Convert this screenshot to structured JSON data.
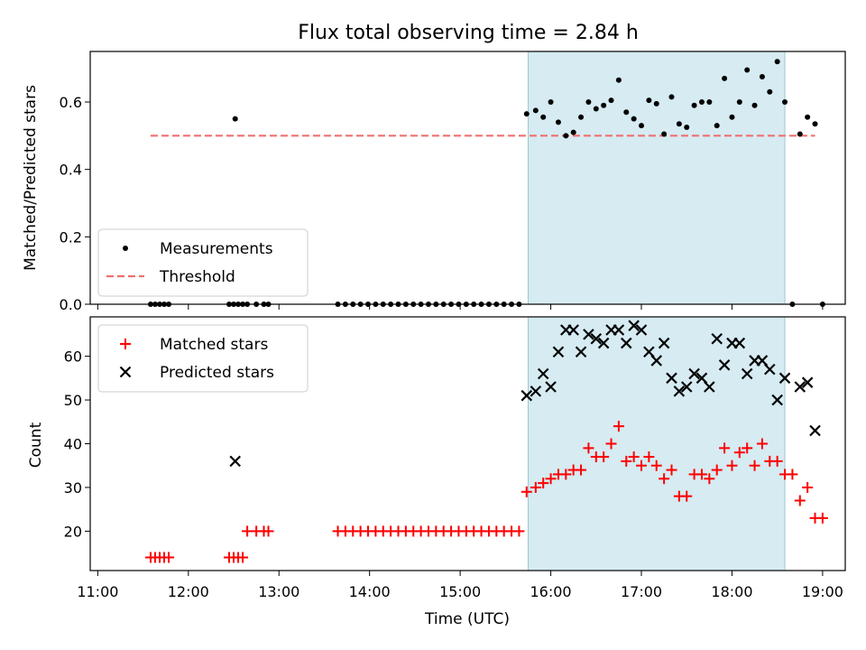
{
  "title": "Flux total observing time = 2.84 h",
  "chart_data": [
    {
      "type": "scatter",
      "panel": "top",
      "ylabel": "Matched/Predicted stars",
      "ylim": [
        0,
        0.75
      ],
      "yticks": [
        0.0,
        0.2,
        0.4,
        0.6
      ],
      "ytick_labels": [
        "0.0",
        "0.2",
        "0.4",
        "0.6"
      ],
      "legend_placement": "lower-left",
      "shaded_interval": [
        "15:45",
        "18:35"
      ],
      "threshold": {
        "name": "Threshold",
        "value": 0.5,
        "x_range": [
          "11:35",
          "18:55"
        ],
        "color": "#f07070"
      },
      "series": [
        {
          "name": "Measurements",
          "color": "#000000",
          "points": [
            [
              "11:35",
              0
            ],
            [
              "11:38",
              0
            ],
            [
              "11:41",
              0
            ],
            [
              "11:44",
              0
            ],
            [
              "11:47",
              0
            ],
            [
              "12:27",
              0
            ],
            [
              "12:30",
              0
            ],
            [
              "12:33",
              0
            ],
            [
              "12:36",
              0
            ],
            [
              "12:39",
              0
            ],
            [
              "12:45",
              0
            ],
            [
              "12:50",
              0
            ],
            [
              "12:53",
              0
            ],
            [
              "12:31",
              0.55
            ],
            [
              "13:39",
              0
            ],
            [
              "13:44",
              0
            ],
            [
              "13:49",
              0
            ],
            [
              "13:54",
              0
            ],
            [
              "13:59",
              0
            ],
            [
              "14:04",
              0
            ],
            [
              "14:09",
              0
            ],
            [
              "14:14",
              0
            ],
            [
              "14:19",
              0
            ],
            [
              "14:24",
              0
            ],
            [
              "14:29",
              0
            ],
            [
              "14:34",
              0
            ],
            [
              "14:39",
              0
            ],
            [
              "14:44",
              0
            ],
            [
              "14:49",
              0
            ],
            [
              "14:54",
              0
            ],
            [
              "14:59",
              0
            ],
            [
              "15:04",
              0
            ],
            [
              "15:09",
              0
            ],
            [
              "15:14",
              0
            ],
            [
              "15:19",
              0
            ],
            [
              "15:24",
              0
            ],
            [
              "15:29",
              0
            ],
            [
              "15:34",
              0
            ],
            [
              "15:39",
              0
            ],
            [
              "15:44",
              0.565
            ],
            [
              "15:50",
              0.575
            ],
            [
              "15:55",
              0.555
            ],
            [
              "16:00",
              0.6
            ],
            [
              "16:05",
              0.54
            ],
            [
              "16:10",
              0.5
            ],
            [
              "16:15",
              0.51
            ],
            [
              "16:20",
              0.555
            ],
            [
              "16:25",
              0.6
            ],
            [
              "16:30",
              0.58
            ],
            [
              "16:35",
              0.59
            ],
            [
              "16:40",
              0.605
            ],
            [
              "16:45",
              0.665
            ],
            [
              "16:50",
              0.57
            ],
            [
              "16:55",
              0.55
            ],
            [
              "17:00",
              0.53
            ],
            [
              "17:05",
              0.605
            ],
            [
              "17:10",
              0.595
            ],
            [
              "17:15",
              0.505
            ],
            [
              "17:20",
              0.615
            ],
            [
              "17:25",
              0.535
            ],
            [
              "17:30",
              0.525
            ],
            [
              "17:35",
              0.59
            ],
            [
              "17:40",
              0.6
            ],
            [
              "17:45",
              0.6
            ],
            [
              "17:50",
              0.53
            ],
            [
              "17:55",
              0.67
            ],
            [
              "18:00",
              0.555
            ],
            [
              "18:05",
              0.6
            ],
            [
              "18:10",
              0.695
            ],
            [
              "18:15",
              0.59
            ],
            [
              "18:20",
              0.675
            ],
            [
              "18:25",
              0.63
            ],
            [
              "18:30",
              0.72
            ],
            [
              "18:35",
              0.6
            ],
            [
              "18:40",
              0
            ],
            [
              "18:45",
              0.505
            ],
            [
              "18:50",
              0.555
            ],
            [
              "18:55",
              0.535
            ],
            [
              "19:00",
              0
            ]
          ]
        }
      ]
    },
    {
      "type": "scatter",
      "panel": "bottom",
      "xlabel": "Time (UTC)",
      "ylabel": "Count",
      "ylim": [
        11,
        69
      ],
      "yticks": [
        20,
        30,
        40,
        50,
        60
      ],
      "ytick_labels": [
        "20",
        "30",
        "40",
        "50",
        "60"
      ],
      "xlim": [
        "10:55",
        "19:15"
      ],
      "xticks": [
        "11:00",
        "12:00",
        "13:00",
        "14:00",
        "15:00",
        "16:00",
        "17:00",
        "18:00",
        "19:00"
      ],
      "legend_placement": "upper-left",
      "shaded_interval": [
        "15:45",
        "18:35"
      ],
      "series": [
        {
          "name": "Matched stars",
          "marker": "plus",
          "color": "#ff0000",
          "points": [
            [
              "11:35",
              14
            ],
            [
              "11:38",
              14
            ],
            [
              "11:41",
              14
            ],
            [
              "11:44",
              14
            ],
            [
              "11:47",
              14
            ],
            [
              "12:27",
              14
            ],
            [
              "12:30",
              14
            ],
            [
              "12:33",
              14
            ],
            [
              "12:36",
              14
            ],
            [
              "12:39",
              20
            ],
            [
              "12:45",
              20
            ],
            [
              "12:50",
              20
            ],
            [
              "12:53",
              20
            ],
            [
              "13:39",
              20
            ],
            [
              "13:44",
              20
            ],
            [
              "13:49",
              20
            ],
            [
              "13:54",
              20
            ],
            [
              "13:59",
              20
            ],
            [
              "14:04",
              20
            ],
            [
              "14:09",
              20
            ],
            [
              "14:14",
              20
            ],
            [
              "14:19",
              20
            ],
            [
              "14:24",
              20
            ],
            [
              "14:29",
              20
            ],
            [
              "14:34",
              20
            ],
            [
              "14:39",
              20
            ],
            [
              "14:44",
              20
            ],
            [
              "14:49",
              20
            ],
            [
              "14:54",
              20
            ],
            [
              "14:59",
              20
            ],
            [
              "15:04",
              20
            ],
            [
              "15:09",
              20
            ],
            [
              "15:14",
              20
            ],
            [
              "15:19",
              20
            ],
            [
              "15:24",
              20
            ],
            [
              "15:29",
              20
            ],
            [
              "15:34",
              20
            ],
            [
              "15:39",
              20
            ],
            [
              "15:44",
              29
            ],
            [
              "15:50",
              30
            ],
            [
              "15:55",
              31
            ],
            [
              "16:00",
              32
            ],
            [
              "16:05",
              33
            ],
            [
              "16:10",
              33
            ],
            [
              "16:15",
              34
            ],
            [
              "16:20",
              34
            ],
            [
              "16:25",
              39
            ],
            [
              "16:30",
              37
            ],
            [
              "16:35",
              37
            ],
            [
              "16:40",
              40
            ],
            [
              "16:45",
              44
            ],
            [
              "16:50",
              36
            ],
            [
              "16:55",
              37
            ],
            [
              "17:00",
              35
            ],
            [
              "17:05",
              37
            ],
            [
              "17:10",
              35
            ],
            [
              "17:15",
              32
            ],
            [
              "17:20",
              34
            ],
            [
              "17:25",
              28
            ],
            [
              "17:30",
              28
            ],
            [
              "17:35",
              33
            ],
            [
              "17:40",
              33
            ],
            [
              "17:45",
              32
            ],
            [
              "17:50",
              34
            ],
            [
              "17:55",
              39
            ],
            [
              "18:00",
              35
            ],
            [
              "18:05",
              38
            ],
            [
              "18:10",
              39
            ],
            [
              "18:15",
              35
            ],
            [
              "18:20",
              40
            ],
            [
              "18:25",
              36
            ],
            [
              "18:30",
              36
            ],
            [
              "18:35",
              33
            ],
            [
              "18:40",
              33
            ],
            [
              "18:45",
              27
            ],
            [
              "18:50",
              30
            ],
            [
              "18:55",
              23
            ],
            [
              "19:00",
              23
            ]
          ]
        },
        {
          "name": "Predicted stars",
          "marker": "x",
          "color": "#000000",
          "points": [
            [
              "12:31",
              36
            ],
            [
              "15:44",
              51
            ],
            [
              "15:50",
              52
            ],
            [
              "15:55",
              56
            ],
            [
              "16:00",
              53
            ],
            [
              "16:05",
              61
            ],
            [
              "16:10",
              66
            ],
            [
              "16:15",
              66
            ],
            [
              "16:20",
              61
            ],
            [
              "16:25",
              65
            ],
            [
              "16:30",
              64
            ],
            [
              "16:35",
              63
            ],
            [
              "16:40",
              66
            ],
            [
              "16:45",
              66
            ],
            [
              "16:50",
              63
            ],
            [
              "16:55",
              67
            ],
            [
              "17:00",
              66
            ],
            [
              "17:05",
              61
            ],
            [
              "17:10",
              59
            ],
            [
              "17:15",
              63
            ],
            [
              "17:20",
              55
            ],
            [
              "17:25",
              52
            ],
            [
              "17:30",
              53
            ],
            [
              "17:35",
              56
            ],
            [
              "17:40",
              55
            ],
            [
              "17:45",
              53
            ],
            [
              "17:50",
              64
            ],
            [
              "17:55",
              58
            ],
            [
              "18:00",
              63
            ],
            [
              "18:05",
              63
            ],
            [
              "18:10",
              56
            ],
            [
              "18:15",
              59
            ],
            [
              "18:20",
              59
            ],
            [
              "18:25",
              57
            ],
            [
              "18:30",
              50
            ],
            [
              "18:35",
              55
            ],
            [
              "18:45",
              53
            ],
            [
              "18:50",
              54
            ],
            [
              "18:55",
              43
            ]
          ]
        }
      ]
    }
  ]
}
